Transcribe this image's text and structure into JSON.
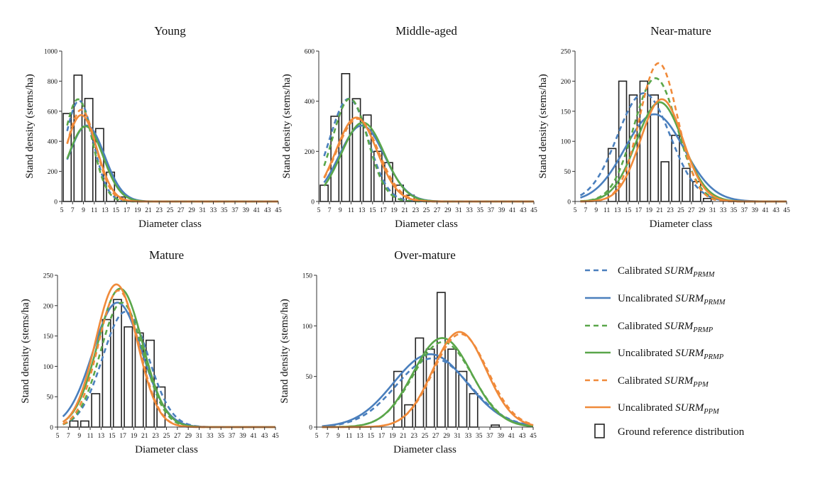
{
  "colors": {
    "blue": "#4a7fbd",
    "green": "#5aa64a",
    "orange": "#f08a3a",
    "bar_edge": "#222222",
    "axis": "#333333"
  },
  "legend": {
    "items": [
      {
        "prefix": "Calibrated ",
        "model": "SURM",
        "sub": "PRMM",
        "color": "blue",
        "dash": true
      },
      {
        "prefix": "Uncalibrated  ",
        "model": "SURM",
        "sub": "PRMM",
        "color": "blue",
        "dash": false
      },
      {
        "prefix": "Calibrated ",
        "model": "SURM",
        "sub": "PRMP",
        "color": "green",
        "dash": true
      },
      {
        "prefix": "Uncalibrated ",
        "model": "SURM",
        "sub": "PRMP",
        "color": "green",
        "dash": false
      },
      {
        "prefix": "Calibrated ",
        "model": "SURM",
        "sub": "PPM",
        "color": "orange",
        "dash": true
      },
      {
        "prefix": "Uncalibrated ",
        "model": "SURM",
        "sub": "PPM",
        "color": "orange",
        "dash": false
      }
    ],
    "bar_label": "Ground reference distribution"
  },
  "chart_data": [
    {
      "type": "bar",
      "title": "Young",
      "xlabel": "Diameter class",
      "ylabel": "Stand density (stems/ha)",
      "ylim": [
        0,
        1000
      ],
      "yticks": [
        0,
        200,
        400,
        600,
        800,
        1000
      ],
      "xlim": [
        5,
        45
      ],
      "xticks": [
        5,
        7,
        9,
        11,
        13,
        15,
        17,
        19,
        21,
        23,
        25,
        27,
        29,
        31,
        33,
        35,
        37,
        39,
        41,
        43,
        45
      ],
      "bars": {
        "x": [
          6,
          8,
          10,
          12,
          14,
          16,
          18,
          20
        ],
        "values": [
          585,
          840,
          685,
          485,
          195,
          30,
          5,
          3
        ]
      },
      "series": [
        {
          "color": "blue",
          "dash": true,
          "curve": {
            "mu": 8.2,
            "sigma": 2.6,
            "peak": 670
          }
        },
        {
          "color": "blue",
          "dash": false,
          "curve": {
            "mu": 9.6,
            "sigma": 3.3,
            "peak": 505
          }
        },
        {
          "color": "green",
          "dash": true,
          "curve": {
            "mu": 8.0,
            "sigma": 2.6,
            "peak": 680
          }
        },
        {
          "color": "green",
          "dash": false,
          "curve": {
            "mu": 9.4,
            "sigma": 3.2,
            "peak": 500
          }
        },
        {
          "color": "orange",
          "dash": true,
          "curve": {
            "mu": 8.6,
            "sigma": 2.7,
            "peak": 610
          }
        },
        {
          "color": "orange",
          "dash": false,
          "curve": {
            "mu": 8.6,
            "sigma": 2.9,
            "peak": 575
          }
        }
      ]
    },
    {
      "type": "bar",
      "title": "Middle-aged",
      "xlabel": "Diameter class",
      "ylabel": "Stand density (stems/ha)",
      "ylim": [
        0,
        600
      ],
      "yticks": [
        0,
        200,
        400,
        600
      ],
      "xlim": [
        5,
        45
      ],
      "xticks": [
        5,
        7,
        9,
        11,
        13,
        15,
        17,
        19,
        21,
        23,
        25,
        27,
        29,
        31,
        33,
        35,
        37,
        39,
        41,
        43,
        45
      ],
      "bars": {
        "x": [
          6,
          8,
          10,
          12,
          14,
          16,
          18,
          20,
          22,
          24
        ],
        "values": [
          65,
          340,
          510,
          410,
          345,
          200,
          155,
          65,
          25,
          5
        ]
      },
      "series": [
        {
          "color": "blue",
          "dash": true,
          "curve": {
            "mu": 10.6,
            "sigma": 3.6,
            "peak": 410
          }
        },
        {
          "color": "blue",
          "dash": false,
          "curve": {
            "mu": 13.0,
            "sigma": 4.2,
            "peak": 303
          }
        },
        {
          "color": "green",
          "dash": true,
          "curve": {
            "mu": 10.8,
            "sigma": 3.3,
            "peak": 410
          }
        },
        {
          "color": "green",
          "dash": false,
          "curve": {
            "mu": 13.2,
            "sigma": 4.0,
            "peak": 315
          }
        },
        {
          "color": "orange",
          "dash": true,
          "curve": {
            "mu": 12.2,
            "sigma": 3.9,
            "peak": 330
          }
        },
        {
          "color": "orange",
          "dash": false,
          "curve": {
            "mu": 12.0,
            "sigma": 3.8,
            "peak": 335
          }
        }
      ]
    },
    {
      "type": "bar",
      "title": "Near-mature",
      "xlabel": "Diameter class",
      "ylabel": "Stand density (stems/ha)",
      "ylim": [
        0,
        250
      ],
      "yticks": [
        0,
        50,
        100,
        150,
        200,
        250
      ],
      "xlim": [
        5,
        45
      ],
      "xticks": [
        5,
        7,
        9,
        11,
        13,
        15,
        17,
        19,
        21,
        23,
        25,
        27,
        29,
        31,
        33,
        35,
        37,
        39,
        41,
        43,
        45
      ],
      "bars": {
        "x": [
          12,
          14,
          16,
          18,
          20,
          22,
          24,
          26,
          28,
          30
        ],
        "values": [
          88,
          200,
          177,
          200,
          177,
          66,
          110,
          55,
          33,
          5
        ]
      },
      "series": [
        {
          "color": "blue",
          "dash": true,
          "curve": {
            "mu": 18.0,
            "sigma": 5.0,
            "peak": 180
          }
        },
        {
          "color": "blue",
          "dash": false,
          "curve": {
            "mu": 20.0,
            "sigma": 5.6,
            "peak": 145
          }
        },
        {
          "color": "green",
          "dash": true,
          "curve": {
            "mu": 20.2,
            "sigma": 4.1,
            "peak": 205
          }
        },
        {
          "color": "green",
          "dash": false,
          "curve": {
            "mu": 21.0,
            "sigma": 4.4,
            "peak": 165
          }
        },
        {
          "color": "orange",
          "dash": true,
          "curve": {
            "mu": 20.8,
            "sigma": 3.6,
            "peak": 230
          }
        },
        {
          "color": "orange",
          "dash": false,
          "curve": {
            "mu": 21.4,
            "sigma": 4.0,
            "peak": 170
          }
        }
      ]
    },
    {
      "type": "bar",
      "title": "Mature",
      "xlabel": "Diameter class",
      "ylabel": "Stand density (stems/ha)",
      "ylim": [
        0,
        250
      ],
      "yticks": [
        0,
        50,
        100,
        150,
        200,
        250
      ],
      "xlim": [
        5,
        45
      ],
      "xticks": [
        5,
        7,
        9,
        11,
        13,
        15,
        17,
        19,
        21,
        23,
        25,
        27,
        29,
        31,
        33,
        35,
        37,
        39,
        41,
        43,
        45
      ],
      "bars": {
        "x": [
          8,
          10,
          12,
          14,
          16,
          18,
          20,
          22,
          24
        ],
        "values": [
          10,
          10,
          55,
          177,
          210,
          165,
          155,
          143,
          66
        ]
      },
      "series": [
        {
          "color": "blue",
          "dash": true,
          "curve": {
            "mu": 17.5,
            "sigma": 4.2,
            "peak": 190
          }
        },
        {
          "color": "blue",
          "dash": false,
          "curve": {
            "mu": 16.0,
            "sigma": 4.5,
            "peak": 205
          }
        },
        {
          "color": "green",
          "dash": true,
          "curve": {
            "mu": 16.8,
            "sigma": 3.9,
            "peak": 205
          }
        },
        {
          "color": "green",
          "dash": false,
          "curve": {
            "mu": 16.5,
            "sigma": 4.1,
            "peak": 228
          }
        },
        {
          "color": "orange",
          "dash": true,
          "curve": {
            "mu": 16.2,
            "sigma": 3.7,
            "peak": 225
          }
        },
        {
          "color": "orange",
          "dash": false,
          "curve": {
            "mu": 15.8,
            "sigma": 3.8,
            "peak": 235
          }
        }
      ]
    },
    {
      "type": "bar",
      "title": "Over-mature",
      "xlabel": "Diameter class",
      "ylabel": "Stand density (stems/ha)",
      "ylim": [
        0,
        150
      ],
      "yticks": [
        0,
        50,
        100,
        150
      ],
      "xlim": [
        5,
        45
      ],
      "xticks": [
        5,
        7,
        9,
        11,
        13,
        15,
        17,
        19,
        21,
        23,
        25,
        27,
        29,
        31,
        33,
        35,
        37,
        39,
        41,
        43,
        45
      ],
      "bars": {
        "x": [
          20,
          22,
          24,
          26,
          28,
          30,
          32,
          34,
          38
        ],
        "values": [
          55,
          22,
          88,
          77,
          133,
          77,
          55,
          33,
          2
        ]
      },
      "series": [
        {
          "color": "blue",
          "dash": true,
          "curve": {
            "mu": 26.5,
            "sigma": 6.8,
            "peak": 68
          }
        },
        {
          "color": "blue",
          "dash": false,
          "curve": {
            "mu": 26.0,
            "sigma": 6.8,
            "peak": 72
          }
        },
        {
          "color": "green",
          "dash": true,
          "curve": {
            "mu": 28.3,
            "sigma": 5.5,
            "peak": 84
          }
        },
        {
          "color": "green",
          "dash": false,
          "curve": {
            "mu": 28.2,
            "sigma": 5.4,
            "peak": 88
          }
        },
        {
          "color": "orange",
          "dash": true,
          "curve": {
            "mu": 31.6,
            "sigma": 5.0,
            "peak": 92
          }
        },
        {
          "color": "orange",
          "dash": false,
          "curve": {
            "mu": 31.4,
            "sigma": 4.9,
            "peak": 94
          }
        }
      ]
    }
  ]
}
